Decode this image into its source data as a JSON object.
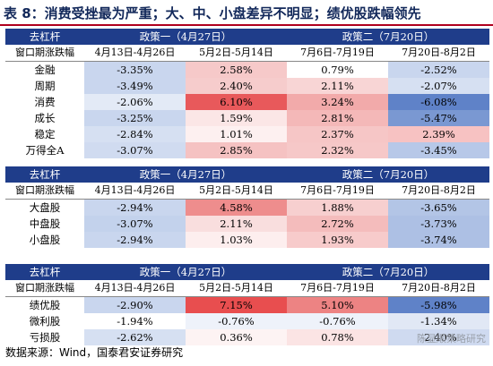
{
  "title": "表 8：消费受挫最为严重；大、中、小盘差异不明显；绩优股跌幅领先",
  "header": {
    "col0": "去杠杆",
    "policy1": "政策一（4月27日）",
    "policy2": "政策二（7月20日）"
  },
  "subheader": {
    "col0": "窗口期涨跌幅",
    "p1a": "4月13日-4月26日",
    "p1b": "5月2日-5月14日",
    "p2a": "7月6日-7月19日",
    "p2b": "7月20日-8月2日"
  },
  "table1": [
    {
      "name": "金融",
      "v": [
        "-3.35%",
        "2.58%",
        "0.79%",
        "-2.52%"
      ]
    },
    {
      "name": "周期",
      "v": [
        "-3.49%",
        "2.40%",
        "2.11%",
        "-2.07%"
      ]
    },
    {
      "name": "消费",
      "v": [
        "-2.06%",
        "6.10%",
        "3.24%",
        "-6.08%"
      ]
    },
    {
      "name": "成长",
      "v": [
        "-3.25%",
        "1.59%",
        "2.81%",
        "-5.47%"
      ]
    },
    {
      "name": "稳定",
      "v": [
        "-2.84%",
        "1.01%",
        "2.37%",
        "2.39%"
      ]
    },
    {
      "name": "万得全A",
      "v": [
        "-3.07%",
        "2.85%",
        "2.32%",
        "-3.45%"
      ]
    }
  ],
  "table2": [
    {
      "name": "大盘股",
      "v": [
        "-2.94%",
        "4.58%",
        "1.88%",
        "-3.65%"
      ]
    },
    {
      "name": "中盘股",
      "v": [
        "-3.07%",
        "2.11%",
        "2.72%",
        "-3.73%"
      ]
    },
    {
      "name": "小盘股",
      "v": [
        "-2.94%",
        "1.03%",
        "1.93%",
        "-3.74%"
      ]
    }
  ],
  "table3": [
    {
      "name": "绩优股",
      "v": [
        "-2.90%",
        "7.15%",
        "5.10%",
        "-5.98%"
      ]
    },
    {
      "name": "微利股",
      "v": [
        "-1.94%",
        "-0.76%",
        "-0.76%",
        "-1.34%"
      ]
    },
    {
      "name": "亏损股",
      "v": [
        "-2.62%",
        "0.36%",
        "0.78%",
        "-2.40%"
      ]
    }
  ],
  "cell_colors": {
    "table1": [
      [
        "#c9d6ee",
        "#f6c9c9",
        "#ffffff",
        "#c9d6ee"
      ],
      [
        "#c9d6ee",
        "#f6cccc",
        "#f8d5d5",
        "#d6e0f2"
      ],
      [
        "#e3eaf6",
        "#e8595b",
        "#f2aaaa",
        "#5f82c8"
      ],
      [
        "#c9d6ee",
        "#fbe6e6",
        "#f4b8b8",
        "#7a98d2"
      ],
      [
        "#d6e0f2",
        "#fdf0f0",
        "#f6c6c6",
        "#f7c2c2"
      ],
      [
        "#d0dbf0",
        "#f5c2c2",
        "#f6c8c8",
        "#b7c8e8"
      ]
    ],
    "table2": [
      [
        "#c9d6ee",
        "#ee8d8d",
        "#f7cfcf",
        "#b3c5e6"
      ],
      [
        "#c3d2ec",
        "#f9dede",
        "#f4bcbc",
        "#adc0e4"
      ],
      [
        "#c9d6ee",
        "#fdeeee",
        "#f7cbcb",
        "#adc0e4"
      ]
    ],
    "table3": [
      [
        "#c9d6ee",
        "#e84e4f",
        "#ed8383",
        "#5f82c8"
      ],
      [
        "#ffffff",
        "#eef2fa",
        "#eef2fa",
        "#e1e8f5"
      ],
      [
        "#d6e0f2",
        "#fdf3f3",
        "#fbe4e4",
        "#cfdaf0"
      ]
    ]
  },
  "footer": "数据来源：Wind，国泰君安证券研究",
  "watermark": "陈显顺策略研究"
}
